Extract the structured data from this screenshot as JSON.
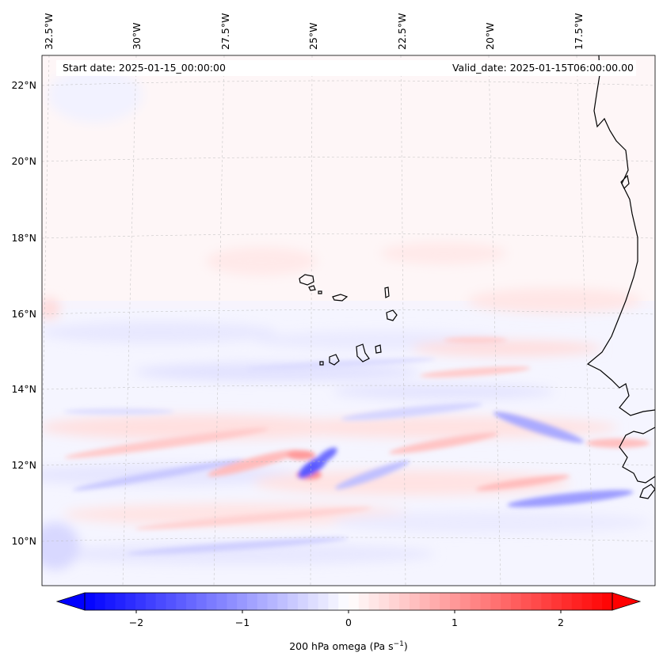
{
  "header": {
    "start_date": "Start date: 2025-01-15_00:00:00",
    "valid_date": "Valid_date: 2025-01-15T06:00:00.00"
  },
  "longitude_labels": [
    "32.5°W",
    "30°W",
    "27.5°W",
    "25°W",
    "22.5°W",
    "20°W",
    "17.5°W"
  ],
  "latitude_labels": [
    "22°N",
    "20°N",
    "18°N",
    "16°N",
    "14°N",
    "12°N",
    "10°N"
  ],
  "colorbar": {
    "ticks": [
      "−2",
      "−1",
      "0",
      "1",
      "2"
    ],
    "label": "200 hPa omega (Pa s",
    "label_sup": "−1",
    "label_close": ")",
    "range": [
      -2.6,
      2.6
    ],
    "colormap": "bwr",
    "low_color": "#0000ff",
    "mid_color": "#ffffff",
    "high_color": "#ff0000"
  }
}
